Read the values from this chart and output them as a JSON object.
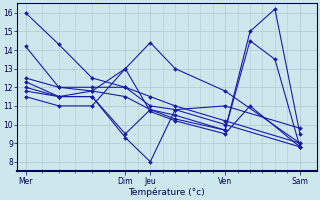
{
  "background_color": "#cce8ed",
  "grid_color": "#b0c8d0",
  "line_color": "#1a1aaa",
  "marker_color": "#1a1aaa",
  "xlabel": "Température (°c)",
  "ylim": [
    7.5,
    16.5
  ],
  "yticks": [
    8,
    9,
    10,
    11,
    12,
    13,
    14,
    15,
    16
  ],
  "x_day_labels": [
    "Mer",
    "Dim",
    "Jeu",
    "Ven",
    "Sam"
  ],
  "x_day_positions": [
    0,
    48,
    60,
    96,
    132
  ],
  "xlim": [
    -4,
    140
  ],
  "lines": [
    [
      0,
      16,
      16,
      14.3,
      32,
      12.5,
      48,
      12.0,
      60,
      11.5,
      72,
      11.0,
      96,
      10.2,
      132,
      9.0
    ],
    [
      0,
      14.2,
      16,
      12.0,
      32,
      12.0,
      48,
      12.0,
      60,
      11.0,
      72,
      10.8,
      96,
      10.0,
      132,
      8.8
    ],
    [
      0,
      12.5,
      16,
      12.0,
      32,
      11.8,
      48,
      13.0,
      60,
      14.4,
      72,
      13.0,
      96,
      11.8,
      132,
      9.0
    ],
    [
      0,
      12.3,
      16,
      11.5,
      32,
      11.5,
      48,
      9.3,
      60,
      8.0,
      72,
      10.8,
      96,
      11.0,
      132,
      9.8
    ],
    [
      0,
      12.0,
      16,
      11.5,
      32,
      11.8,
      48,
      11.5,
      60,
      10.8,
      72,
      10.5,
      96,
      9.7,
      108,
      15.0,
      120,
      16.2,
      132,
      9.5
    ],
    [
      0,
      11.8,
      16,
      11.5,
      32,
      11.5,
      48,
      9.5,
      60,
      10.8,
      72,
      10.3,
      96,
      9.7,
      108,
      14.5,
      120,
      13.5,
      132,
      8.8
    ],
    [
      0,
      11.5,
      16,
      11.0,
      32,
      11.0,
      48,
      13.0,
      60,
      10.7,
      72,
      10.2,
      96,
      9.5,
      108,
      11.0,
      132,
      8.8
    ]
  ]
}
